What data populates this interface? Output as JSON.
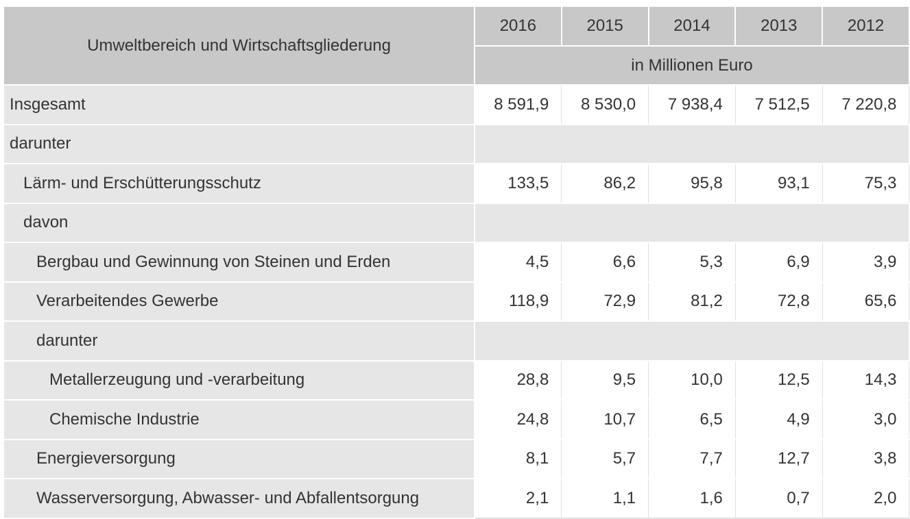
{
  "table": {
    "header": {
      "label": "Umweltbereich und Wirtschaftsgliederung",
      "years": [
        "2016",
        "2015",
        "2014",
        "2013",
        "2012"
      ],
      "unit": "in Millionen Euro"
    },
    "rows": [
      {
        "label": "Insgesamt",
        "values": [
          "8 591,9",
          "8 530,0",
          "7 938,4",
          "7 512,5",
          "7 220,8"
        ]
      },
      {
        "label": "darunter"
      },
      {
        "label": "Lärm- und Erschütterungsschutz",
        "values": [
          "133,5",
          "86,2",
          "95,8",
          "93,1",
          "75,3"
        ]
      },
      {
        "label": "davon"
      },
      {
        "label": "Bergbau und Gewinnung von Steinen und Erden",
        "values": [
          "4,5",
          "6,6",
          "5,3",
          "6,9",
          "3,9"
        ]
      },
      {
        "label": "Verarbeitendes Gewerbe",
        "values": [
          "118,9",
          "72,9",
          "81,2",
          "72,8",
          "65,6"
        ]
      },
      {
        "label": "darunter"
      },
      {
        "label": "Metallerzeugung und -verarbeitung",
        "values": [
          "28,8",
          "9,5",
          "10,0",
          "12,5",
          "14,3"
        ]
      },
      {
        "label": "Chemische Industrie",
        "values": [
          "24,8",
          "10,7",
          "6,5",
          "4,9",
          "3,0"
        ]
      },
      {
        "label": "Energieversorgung",
        "values": [
          "8,1",
          "5,7",
          "7,7",
          "12,7",
          "3,8"
        ]
      },
      {
        "label": "Wasserversorgung, Abwasser- und Abfallentsorgung",
        "values": [
          "2,1",
          "1,1",
          "1,6",
          "0,7",
          "2,0"
        ]
      }
    ]
  }
}
